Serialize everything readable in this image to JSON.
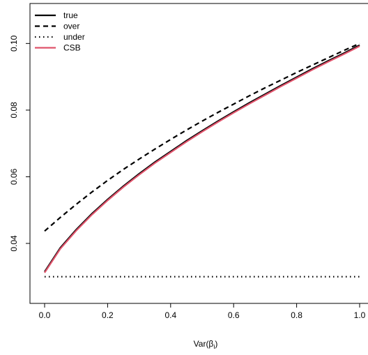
{
  "chart_data": {
    "type": "line",
    "title": "",
    "xlabel": "Var(β",
    "xlabel_subscript": "i",
    "xlabel_suffix": ")",
    "ylabel": "",
    "xlim": [
      0.0,
      1.0
    ],
    "ylim": [
      0.022,
      0.112
    ],
    "x_ticks": [
      0.0,
      0.2,
      0.4,
      0.6,
      0.8,
      1.0
    ],
    "x_tick_labels": [
      "0.0",
      "0.2",
      "0.4",
      "0.6",
      "0.8",
      "1.0"
    ],
    "y_ticks": [
      0.04,
      0.06,
      0.08,
      0.1
    ],
    "y_tick_labels": [
      "0.04",
      "0.06",
      "0.08",
      "0.10"
    ],
    "grid": false,
    "legend_position": "top-left",
    "x": [
      0.0,
      0.05,
      0.1,
      0.15,
      0.2,
      0.25,
      0.3,
      0.35,
      0.4,
      0.45,
      0.5,
      0.55,
      0.6,
      0.65,
      0.7,
      0.75,
      0.8,
      0.85,
      0.9,
      0.95,
      1.0
    ],
    "series": [
      {
        "name": "true",
        "style": "solid",
        "color": "#000000",
        "values": [
          0.0315,
          0.0387,
          0.0441,
          0.0489,
          0.0532,
          0.0572,
          0.0609,
          0.0644,
          0.0676,
          0.0708,
          0.0738,
          0.0767,
          0.0795,
          0.0822,
          0.0848,
          0.0874,
          0.0899,
          0.0924,
          0.0948,
          0.0971,
          0.0995
        ]
      },
      {
        "name": "over",
        "style": "dashed",
        "color": "#000000",
        "values": [
          0.0437,
          0.0478,
          0.0517,
          0.0554,
          0.0589,
          0.0622,
          0.0653,
          0.0683,
          0.0712,
          0.074,
          0.0767,
          0.0793,
          0.0818,
          0.0843,
          0.0867,
          0.089,
          0.0913,
          0.0935,
          0.0957,
          0.0979,
          0.1
        ]
      },
      {
        "name": "under",
        "style": "dotted",
        "color": "#000000",
        "values": [
          0.03,
          0.03,
          0.03,
          0.03,
          0.03,
          0.03,
          0.03,
          0.03,
          0.03,
          0.03,
          0.03,
          0.03,
          0.03,
          0.03,
          0.03,
          0.03,
          0.03,
          0.03,
          0.03,
          0.03,
          0.03
        ]
      },
      {
        "name": "CSB",
        "style": "solid",
        "color": "#DF536B",
        "values": [
          0.0312,
          0.0384,
          0.0438,
          0.0486,
          0.0529,
          0.0569,
          0.0606,
          0.0641,
          0.0673,
          0.0705,
          0.0735,
          0.0764,
          0.0792,
          0.0819,
          0.0845,
          0.0871,
          0.0896,
          0.0921,
          0.0945,
          0.0968,
          0.0992
        ]
      }
    ]
  }
}
